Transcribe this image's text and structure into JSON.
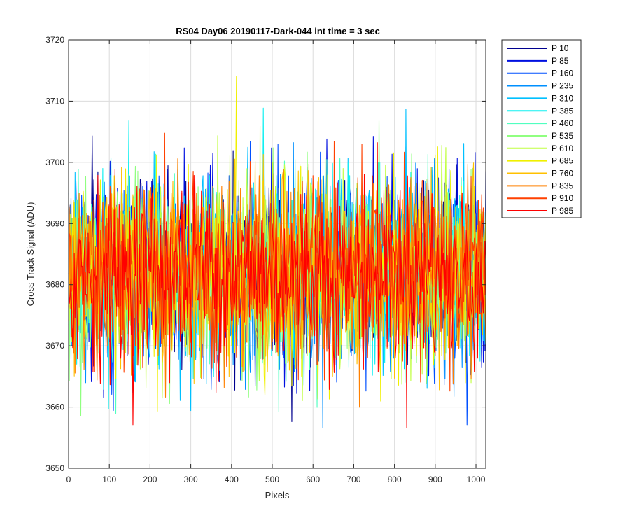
{
  "chart_data": {
    "type": "line",
    "title": "RS04 Day06 20190117-Dark-044 int time = 3 sec",
    "xlabel": "Pixels",
    "ylabel": "Cross Track Signal (ADU)",
    "xlim": [
      0,
      1024
    ],
    "ylim": [
      3650,
      3720
    ],
    "xticks": [
      0,
      100,
      200,
      300,
      400,
      500,
      600,
      700,
      800,
      900,
      1000
    ],
    "yticks": [
      3650,
      3660,
      3670,
      3680,
      3690,
      3700,
      3710,
      3720
    ],
    "grid": true,
    "legend_position": "outside-top-right",
    "noise_center": 3682,
    "noise_typical_range": [
      3668,
      3698
    ],
    "series": [
      {
        "name": "P 10",
        "color": "#00008f"
      },
      {
        "name": "P 85",
        "color": "#0010e0"
      },
      {
        "name": "P 160",
        "color": "#0050ff"
      },
      {
        "name": "P 235",
        "color": "#0090ff"
      },
      {
        "name": "P 310",
        "color": "#00c0ff"
      },
      {
        "name": "P 385",
        "color": "#10f0f0"
      },
      {
        "name": "P 460",
        "color": "#50ffc0"
      },
      {
        "name": "P 535",
        "color": "#90ff80"
      },
      {
        "name": "P 610",
        "color": "#c0ff40"
      },
      {
        "name": "P 685",
        "color": "#f0f000"
      },
      {
        "name": "P 760",
        "color": "#ffc000"
      },
      {
        "name": "P 835",
        "color": "#ff8000"
      },
      {
        "name": "P 910",
        "color": "#ff4000"
      },
      {
        "name": "P 985",
        "color": "#ff0000"
      }
    ]
  }
}
